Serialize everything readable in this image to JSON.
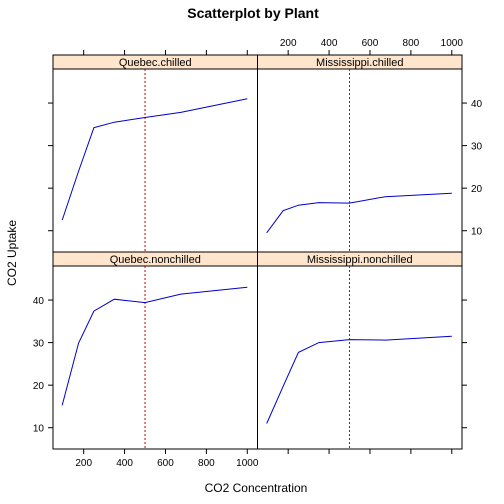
{
  "chart_data": {
    "type": "line",
    "title": "Scatterplot by Plant",
    "xlabel": "CO2 Concentration",
    "ylabel": "CO2 Uptake",
    "xlim": [
      50,
      1050
    ],
    "ylim": [
      5,
      48
    ],
    "x_ticks": [
      200,
      400,
      600,
      800,
      1000
    ],
    "y_ticks": [
      10,
      20,
      30,
      40
    ],
    "reference_line_x": 500,
    "line_color": "#0000cc",
    "reference_color": "#cc0000",
    "strip_color": "#ffe5cc",
    "layout": {
      "columns": 2,
      "rows": 2
    },
    "panels": [
      {
        "name": "Quebec.chilled",
        "row": 0,
        "col": 0,
        "x": [
          95,
          175,
          250,
          350,
          500,
          675,
          1000
        ],
        "y": [
          12.5,
          24,
          34.2,
          35.5,
          36.6,
          37.8,
          41
        ]
      },
      {
        "name": "Mississippi.chilled",
        "row": 0,
        "col": 1,
        "x": [
          95,
          175,
          250,
          350,
          500,
          675,
          1000
        ],
        "y": [
          9.5,
          14.7,
          16,
          16.6,
          16.5,
          18,
          18.8
        ]
      },
      {
        "name": "Quebec.nonchilled",
        "row": 1,
        "col": 0,
        "x": [
          95,
          175,
          250,
          350,
          500,
          675,
          1000
        ],
        "y": [
          15.3,
          29.9,
          37.4,
          40.2,
          39.4,
          41.4,
          43
        ]
      },
      {
        "name": "Mississippi.nonchilled",
        "row": 1,
        "col": 1,
        "x": [
          95,
          175,
          250,
          350,
          500,
          675,
          1000
        ],
        "y": [
          11,
          19.7,
          27.7,
          30,
          30.7,
          30.6,
          31.5
        ]
      }
    ]
  }
}
